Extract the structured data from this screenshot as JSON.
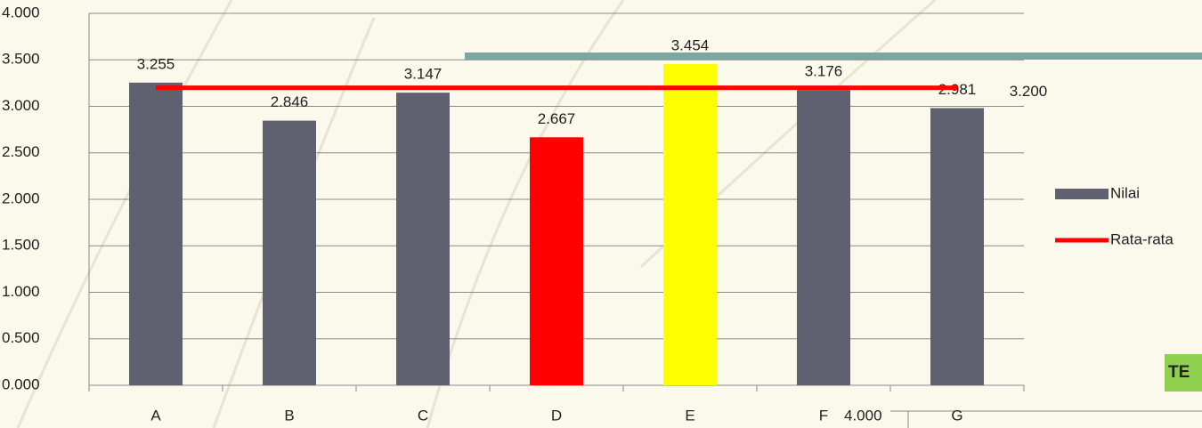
{
  "chart_data": {
    "type": "bar",
    "categories": [
      "A",
      "B",
      "C",
      "D",
      "E",
      "F",
      "G"
    ],
    "series": [
      {
        "name": "Nilai",
        "type": "bar",
        "color": "#5f6170",
        "colors": [
          "#5f6170",
          "#5f6170",
          "#5f6170",
          "#ff0000",
          "#ffff00",
          "#5f6170",
          "#5f6170"
        ],
        "values": [
          3.255,
          2.846,
          3.147,
          2.667,
          3.454,
          3.176,
          2.981
        ]
      },
      {
        "name": "Rata-rata",
        "type": "line",
        "color": "#ff0000",
        "values": [
          3.2,
          3.2,
          3.2,
          3.2,
          3.2,
          3.2,
          3.2
        ],
        "value_labels": [
          null,
          null,
          null,
          null,
          null,
          null,
          "3.200"
        ]
      }
    ],
    "ylim": [
      0,
      4
    ],
    "yticks": [
      {
        "value": 0,
        "label": "0.000"
      },
      {
        "value": 0.5,
        "label": "0.500"
      },
      {
        "value": 1,
        "label": "1.000"
      },
      {
        "value": 1.5,
        "label": "1.500"
      },
      {
        "value": 2,
        "label": "2.000"
      },
      {
        "value": 2.5,
        "label": "2.500"
      },
      {
        "value": 3,
        "label": "3.000"
      },
      {
        "value": 3.5,
        "label": "3.500"
      },
      {
        "value": 4,
        "label": "4.000"
      }
    ],
    "grid": true,
    "legend": "right",
    "annotations": [
      "4.000",
      "TE"
    ]
  }
}
